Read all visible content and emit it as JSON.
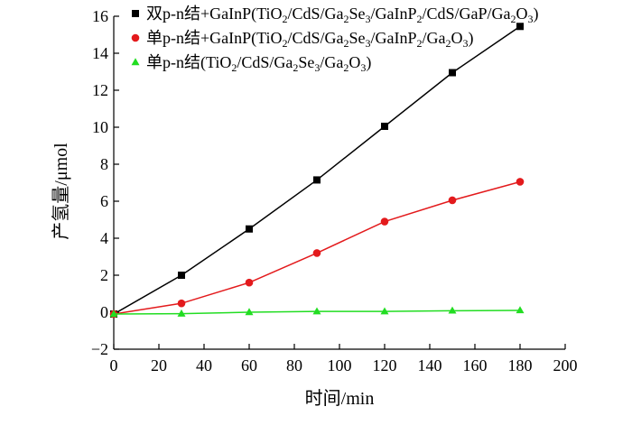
{
  "chart_data": {
    "type": "line",
    "xlabel": "时间/min",
    "ylabel": "产氢量/μmol",
    "xlim": [
      0,
      200
    ],
    "ylim": [
      -2,
      16
    ],
    "xticks": [
      "0",
      "20",
      "40",
      "60",
      "80",
      "100",
      "120",
      "140",
      "160",
      "180",
      "200"
    ],
    "yticks": [
      "-2",
      "0",
      "2",
      "4",
      "6",
      "8",
      "10",
      "12",
      "14",
      "16"
    ],
    "grid": false,
    "legend_position": "top-left",
    "series": [
      {
        "name": "双p-n结+GaInP(TiO2/CdS/Ga2Se3/GaInP2/CdS/GaP/Ga2O3)",
        "color": "#000000",
        "marker": "square",
        "x": [
          0,
          30,
          60,
          90,
          120,
          150,
          180
        ],
        "y": [
          -0.1,
          2.0,
          4.5,
          7.15,
          10.05,
          12.95,
          15.45
        ]
      },
      {
        "name": "单p-n结+GaInP(TiO2/CdS/Ga2Se3/GaInP2/Ga2O3)",
        "color": "#e31a1c",
        "marker": "circle",
        "x": [
          0,
          30,
          60,
          90,
          120,
          150,
          180
        ],
        "y": [
          -0.1,
          0.48,
          1.6,
          3.2,
          4.9,
          6.05,
          7.05
        ]
      },
      {
        "name": "单p-n结(TiO2/CdS/Ga2Se3/Ga2O3)",
        "color": "#22dd22",
        "marker": "triangle",
        "x": [
          0,
          30,
          60,
          90,
          120,
          150,
          180
        ],
        "y": [
          -0.1,
          -0.08,
          0.0,
          0.04,
          0.04,
          0.08,
          0.1
        ]
      }
    ]
  }
}
